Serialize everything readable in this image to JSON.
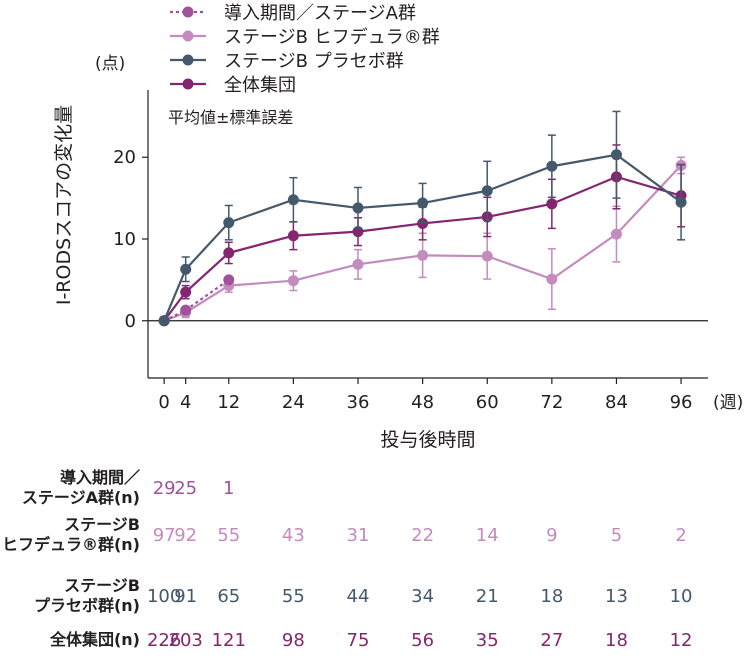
{
  "chart_data": {
    "type": "line",
    "ylabel": "I-RODSスコアの変化量",
    "y_unit": "(点)",
    "xlabel": "投与後時間",
    "x_unit": "(週)",
    "annotation": "平均値±標準誤差",
    "ylim": [
      -7,
      27
    ],
    "xlim": [
      -3,
      101
    ],
    "yticks": [
      0,
      10,
      20
    ],
    "xticks": [
      0,
      4,
      12,
      24,
      36,
      48,
      60,
      72,
      84,
      96
    ],
    "series": [
      {
        "name": "導入期間／ステージA群",
        "color": "#a0529b",
        "dashed": true,
        "x": [
          0,
          4,
          12
        ],
        "y": [
          0,
          1.3,
          5.0
        ],
        "err": [
          0,
          0,
          0
        ]
      },
      {
        "name": "ステージB ヒフデュラ®群",
        "color": "#c48bbf",
        "dashed": false,
        "x": [
          0,
          4,
          12,
          24,
          36,
          48,
          60,
          72,
          84,
          96
        ],
        "y": [
          0,
          1.0,
          4.3,
          4.9,
          6.9,
          8.0,
          7.9,
          5.1,
          10.6,
          19.0
        ],
        "err": [
          0,
          0.6,
          0.8,
          1.2,
          1.8,
          2.7,
          2.8,
          3.7,
          3.4,
          1.0
        ]
      },
      {
        "name": "ステージB プラセボ群",
        "color": "#44596b",
        "dashed": false,
        "x": [
          0,
          4,
          12,
          24,
          36,
          48,
          60,
          72,
          84,
          96
        ],
        "y": [
          0,
          6.3,
          12.0,
          14.8,
          13.8,
          14.4,
          15.9,
          18.9,
          20.3,
          14.5
        ],
        "err": [
          0,
          1.5,
          2.1,
          2.7,
          2.5,
          2.4,
          3.6,
          3.8,
          5.3,
          4.6
        ]
      },
      {
        "name": "全体集団",
        "color": "#84266f",
        "dashed": false,
        "x": [
          0,
          4,
          12,
          24,
          36,
          48,
          60,
          72,
          84,
          96
        ],
        "y": [
          0,
          3.5,
          8.3,
          10.4,
          10.9,
          11.9,
          12.7,
          14.3,
          17.6,
          15.3
        ],
        "err": [
          0,
          0.8,
          1.3,
          1.7,
          1.7,
          2.0,
          2.4,
          3.0,
          3.9,
          3.8
        ]
      }
    ]
  },
  "table": {
    "rows": [
      {
        "label_lines": [
          "導入期間／",
          "ステージA群(n)"
        ],
        "color": "#a0529b",
        "values": [
          "29",
          "25",
          "1"
        ]
      },
      {
        "label_lines": [
          "ステージB",
          "ヒフデュラ®群(n)"
        ],
        "color": "#c48bbf",
        "values": [
          "97",
          "92",
          "55",
          "43",
          "31",
          "22",
          "14",
          "9",
          "5",
          "2"
        ]
      },
      {
        "label_lines": [
          "ステージB",
          "プラセボ群(n)"
        ],
        "color": "#44596b",
        "values": [
          "100",
          "91",
          "65",
          "55",
          "44",
          "34",
          "21",
          "18",
          "13",
          "10"
        ]
      },
      {
        "label_lines": [
          "全体集団(n)"
        ],
        "color": "#84266f",
        "values": [
          "226",
          "203",
          "121",
          "98",
          "75",
          "56",
          "35",
          "27",
          "18",
          "12"
        ]
      }
    ]
  }
}
